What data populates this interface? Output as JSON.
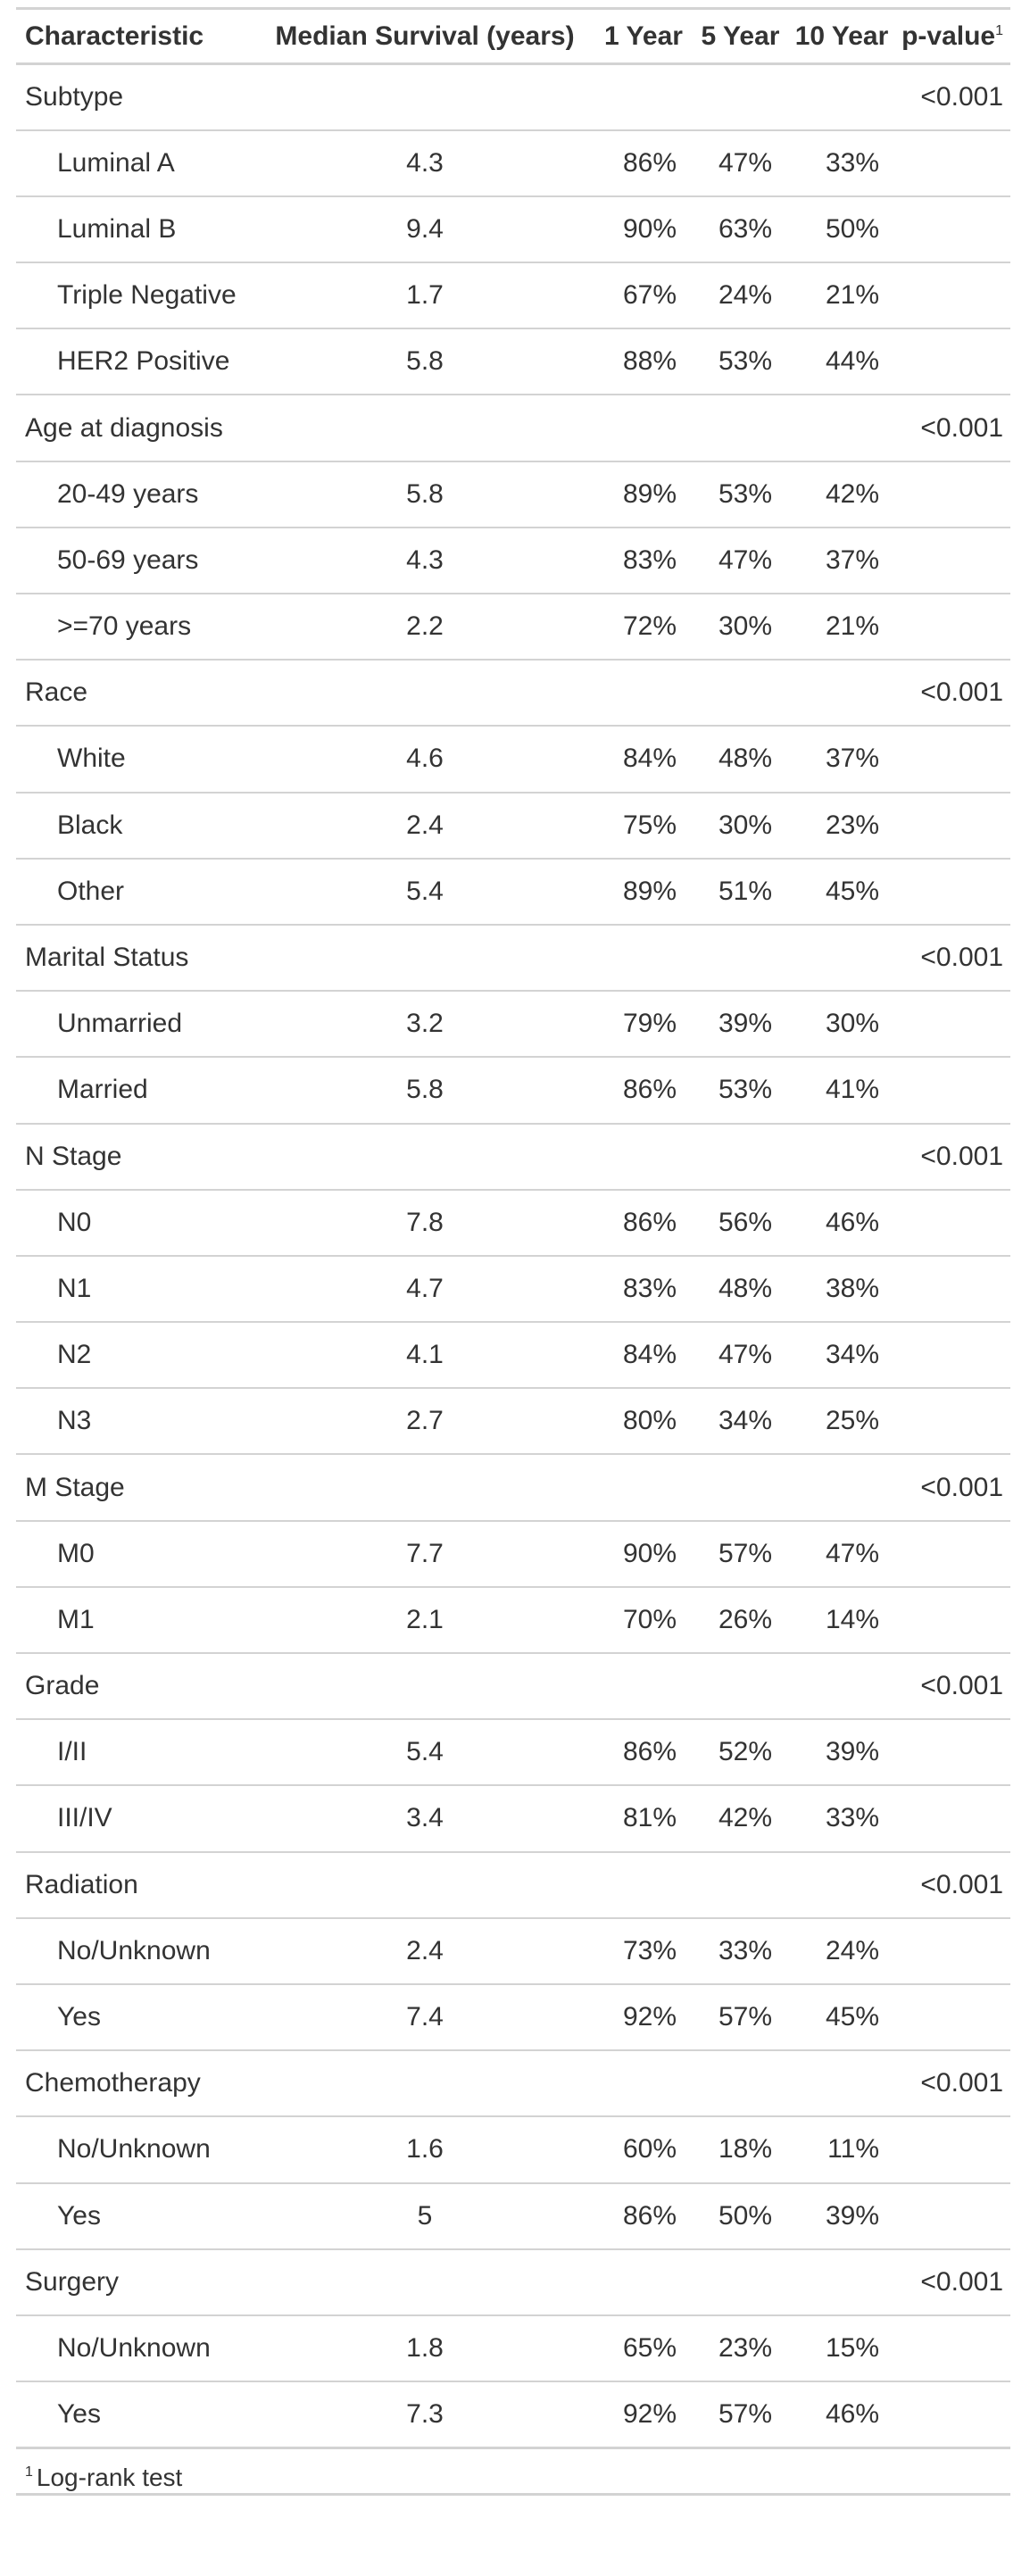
{
  "columns": {
    "characteristic": "Characteristic",
    "median": "Median Survival (years)",
    "y1": "1 Year",
    "y5": "5 Year",
    "y10": "10 Year",
    "pvalue": "p-value",
    "pvalue_footnote_mark": "1"
  },
  "rows": [
    {
      "type": "group",
      "label": "Subtype",
      "p": "<0.001"
    },
    {
      "type": "level",
      "label": "Luminal A",
      "median": "4.3",
      "y1": "86%",
      "y5": "47%",
      "y10": "33%"
    },
    {
      "type": "level",
      "label": "Luminal B",
      "median": "9.4",
      "y1": "90%",
      "y5": "63%",
      "y10": "50%"
    },
    {
      "type": "level",
      "label": "Triple Negative",
      "median": "1.7",
      "y1": "67%",
      "y5": "24%",
      "y10": "21%"
    },
    {
      "type": "level",
      "label": "HER2 Positive",
      "median": "5.8",
      "y1": "88%",
      "y5": "53%",
      "y10": "44%"
    },
    {
      "type": "group",
      "label": "Age at diagnosis",
      "p": "<0.001"
    },
    {
      "type": "level",
      "label": "20-49 years",
      "median": "5.8",
      "y1": "89%",
      "y5": "53%",
      "y10": "42%"
    },
    {
      "type": "level",
      "label": "50-69 years",
      "median": "4.3",
      "y1": "83%",
      "y5": "47%",
      "y10": "37%"
    },
    {
      "type": "level",
      "label": ">=70 years",
      "median": "2.2",
      "y1": "72%",
      "y5": "30%",
      "y10": "21%"
    },
    {
      "type": "group",
      "label": "Race",
      "p": "<0.001"
    },
    {
      "type": "level",
      "label": "White",
      "median": "4.6",
      "y1": "84%",
      "y5": "48%",
      "y10": "37%"
    },
    {
      "type": "level",
      "label": "Black",
      "median": "2.4",
      "y1": "75%",
      "y5": "30%",
      "y10": "23%"
    },
    {
      "type": "level",
      "label": "Other",
      "median": "5.4",
      "y1": "89%",
      "y5": "51%",
      "y10": "45%"
    },
    {
      "type": "group",
      "label": "Marital Status",
      "p": "<0.001"
    },
    {
      "type": "level",
      "label": "Unmarried",
      "median": "3.2",
      "y1": "79%",
      "y5": "39%",
      "y10": "30%"
    },
    {
      "type": "level",
      "label": "Married",
      "median": "5.8",
      "y1": "86%",
      "y5": "53%",
      "y10": "41%"
    },
    {
      "type": "group",
      "label": "N Stage",
      "p": "<0.001"
    },
    {
      "type": "level",
      "label": "N0",
      "median": "7.8",
      "y1": "86%",
      "y5": "56%",
      "y10": "46%"
    },
    {
      "type": "level",
      "label": "N1",
      "median": "4.7",
      "y1": "83%",
      "y5": "48%",
      "y10": "38%"
    },
    {
      "type": "level",
      "label": "N2",
      "median": "4.1",
      "y1": "84%",
      "y5": "47%",
      "y10": "34%"
    },
    {
      "type": "level",
      "label": "N3",
      "median": "2.7",
      "y1": "80%",
      "y5": "34%",
      "y10": "25%"
    },
    {
      "type": "group",
      "label": "M Stage",
      "p": "<0.001"
    },
    {
      "type": "level",
      "label": "M0",
      "median": "7.7",
      "y1": "90%",
      "y5": "57%",
      "y10": "47%"
    },
    {
      "type": "level",
      "label": "M1",
      "median": "2.1",
      "y1": "70%",
      "y5": "26%",
      "y10": "14%"
    },
    {
      "type": "group",
      "label": "Grade",
      "p": "<0.001"
    },
    {
      "type": "level",
      "label": "I/II",
      "median": "5.4",
      "y1": "86%",
      "y5": "52%",
      "y10": "39%"
    },
    {
      "type": "level",
      "label": "III/IV",
      "median": "3.4",
      "y1": "81%",
      "y5": "42%",
      "y10": "33%"
    },
    {
      "type": "group",
      "label": "Radiation",
      "p": "<0.001"
    },
    {
      "type": "level",
      "label": "No/Unknown",
      "median": "2.4",
      "y1": "73%",
      "y5": "33%",
      "y10": "24%"
    },
    {
      "type": "level",
      "label": "Yes",
      "median": "7.4",
      "y1": "92%",
      "y5": "57%",
      "y10": "45%"
    },
    {
      "type": "group",
      "label": "Chemotherapy",
      "p": "<0.001"
    },
    {
      "type": "level",
      "label": "No/Unknown",
      "median": "1.6",
      "y1": "60%",
      "y5": "18%",
      "y10": "11%"
    },
    {
      "type": "level",
      "label": "Yes",
      "median": "5",
      "y1": "86%",
      "y5": "50%",
      "y10": "39%"
    },
    {
      "type": "group",
      "label": "Surgery",
      "p": "<0.001"
    },
    {
      "type": "level",
      "label": "No/Unknown",
      "median": "1.8",
      "y1": "65%",
      "y5": "23%",
      "y10": "15%"
    },
    {
      "type": "level",
      "label": "Yes",
      "median": "7.3",
      "y1": "92%",
      "y5": "57%",
      "y10": "46%"
    }
  ],
  "footnote": {
    "mark": "1",
    "text": "Log-rank test"
  },
  "colors": {
    "text": "#333333",
    "rule": "#d3d3d3",
    "background": "#ffffff"
  }
}
